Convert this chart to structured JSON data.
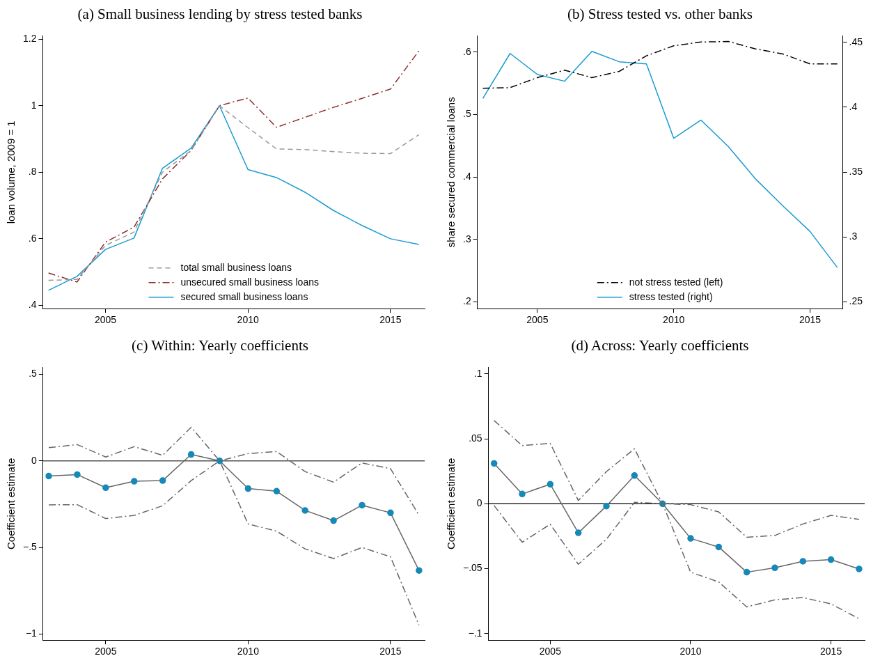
{
  "chart_data": [
    {
      "type": "line",
      "title": "(a) Small business lending by stress tested banks",
      "ylabel": "loan volume, 2009 = 1",
      "x": [
        2003,
        2004,
        2005,
        2006,
        2007,
        2008,
        2009,
        2010,
        2011,
        2012,
        2013,
        2014,
        2015,
        2016
      ],
      "xlim": [
        2002.8,
        2016.2
      ],
      "xticks": [
        2005,
        2010,
        2015
      ],
      "ylim": [
        0.39,
        1.21
      ],
      "yticks": [
        {
          "value": 0.4,
          "label": ".4"
        },
        {
          "value": 0.6,
          "label": ".6"
        },
        {
          "value": 0.8,
          "label": ".8"
        },
        1,
        1.2
      ],
      "grid": false,
      "legend": "bottom",
      "series": [
        {
          "name": "total small business loans",
          "color": "#999999",
          "line_style": "dashed",
          "values": [
            0.475,
            0.478,
            0.58,
            0.62,
            0.8,
            0.865,
            1.0,
            0.934,
            0.87,
            0.868,
            0.862,
            0.857,
            0.856,
            0.913
          ]
        },
        {
          "name": "unsecured small business loans",
          "color": "#8b2c2c",
          "line_style": "dashdot",
          "values": [
            0.497,
            0.47,
            0.59,
            0.635,
            0.78,
            0.865,
            1.0,
            1.023,
            0.935,
            0.965,
            0.995,
            1.022,
            1.05,
            1.165
          ]
        },
        {
          "name": "secured small business loans",
          "color": "#1a9bd0",
          "line_style": "solid",
          "values": [
            0.445,
            0.487,
            0.568,
            0.602,
            0.812,
            0.872,
            1.0,
            0.808,
            0.784,
            0.74,
            0.685,
            0.64,
            0.6,
            0.583
          ]
        }
      ]
    },
    {
      "type": "line",
      "title": "(b) Stress tested vs. other banks",
      "ylabel": "share secured commercial loans",
      "x": [
        2003,
        2004,
        2005,
        2006,
        2007,
        2008,
        2009,
        2010,
        2011,
        2012,
        2013,
        2014,
        2015,
        2016
      ],
      "xlim": [
        2002.8,
        2016.2
      ],
      "xticks": [
        2005,
        2010,
        2015
      ],
      "ylim": [
        0.189,
        0.626
      ],
      "yticks": [
        {
          "value": 0.2,
          "label": ".2"
        },
        {
          "value": 0.3,
          "label": ".3"
        },
        {
          "value": 0.4,
          "label": ".4"
        },
        {
          "value": 0.5,
          "label": ".5"
        },
        {
          "value": 0.6,
          "label": ".6"
        }
      ],
      "y2lim": [
        0.2447,
        0.455
      ],
      "y2ticks": [
        {
          "value": 0.25,
          "label": ".25"
        },
        {
          "value": 0.3,
          "label": ".3"
        },
        {
          "value": 0.35,
          "label": ".35"
        },
        {
          "value": 0.4,
          "label": ".4"
        },
        {
          "value": 0.45,
          "label": ".45"
        }
      ],
      "grid": false,
      "legend": "bottom",
      "series": [
        {
          "name": "not stress tested (left)",
          "color": "#000000",
          "line_style": "dashdot",
          "values": [
            0.542,
            0.543,
            0.559,
            0.571,
            0.559,
            0.569,
            0.594,
            0.61,
            0.616,
            0.617,
            0.605,
            0.597,
            0.581,
            0.581
          ]
        },
        {
          "name": "stress tested (right)",
          "color": "#1a9bd0",
          "line_style": "solid",
          "axis": "y2",
          "values": [
            0.4067,
            0.4414,
            0.4252,
            0.42,
            0.443,
            0.435,
            0.4333,
            0.376,
            0.39,
            0.3697,
            0.3447,
            0.324,
            0.3042,
            0.2764
          ]
        }
      ]
    },
    {
      "type": "line",
      "title": "(c) Within: Yearly coefficients",
      "ylabel": "Coefficient estimate",
      "x": [
        2003,
        2004,
        2005,
        2006,
        2007,
        2008,
        2009,
        2010,
        2011,
        2012,
        2013,
        2014,
        2015,
        2016
      ],
      "xlim": [
        2002.8,
        2016.2
      ],
      "xticks": [
        2005,
        2010,
        2015
      ],
      "ylim": [
        -1.035,
        0.54
      ],
      "yticks": [
        {
          "value": -1,
          "label": "−1"
        },
        {
          "value": -0.5,
          "label": "−.5"
        },
        0,
        {
          "value": 0.5,
          "label": ".5"
        }
      ],
      "grid": false,
      "ref_lines": [
        {
          "axis": "y",
          "value": 0,
          "color": "#555555"
        }
      ],
      "series": [
        {
          "color": "#666666",
          "line_style": "dashdot",
          "values": [
            0.076,
            0.094,
            0.022,
            0.082,
            0.032,
            0.194,
            0,
            0.042,
            0.054,
            -0.062,
            -0.123,
            -0.012,
            -0.045,
            -0.313
          ]
        },
        {
          "color": "#666666",
          "line_style": "dashdot",
          "values": [
            -0.254,
            -0.253,
            -0.333,
            -0.315,
            -0.259,
            -0.114,
            0,
            -0.364,
            -0.406,
            -0.508,
            -0.564,
            -0.5,
            -0.554,
            -0.948
          ]
        },
        {
          "color": "#666666",
          "line_style": "solid",
          "marker": "circle",
          "colors": [
            "#1589b8",
            "#1589b8",
            "#1589b8",
            "#1589b8",
            "#1589b8",
            "#1589b8",
            "#1589b8",
            "#1589b8",
            "#1589b8",
            "#1589b8",
            "#1589b8",
            "#1589b8",
            "#1589b8",
            "#1589b8"
          ],
          "values": [
            -0.088,
            -0.079,
            -0.155,
            -0.118,
            -0.114,
            0.037,
            0,
            -0.16,
            -0.175,
            -0.286,
            -0.345,
            -0.256,
            -0.3,
            -0.633
          ]
        }
      ]
    },
    {
      "type": "line",
      "title": "(d) Across: Yearly coefficients",
      "ylabel": "Coefficient estimate",
      "x": [
        2003,
        2004,
        2005,
        2006,
        2007,
        2008,
        2009,
        2010,
        2011,
        2012,
        2013,
        2014,
        2015,
        2016
      ],
      "xlim": [
        2002.8,
        2016.2
      ],
      "xticks": [
        2005,
        2010,
        2015
      ],
      "ylim": [
        -0.105,
        0.105
      ],
      "yticks": [
        {
          "value": -0.1,
          "label": "−.1"
        },
        {
          "value": -0.05,
          "label": "−.05"
        },
        0,
        {
          "value": 0.05,
          "label": ".05"
        },
        {
          "value": 0.1,
          "label": ".1"
        }
      ],
      "grid": false,
      "ref_lines": [
        {
          "axis": "y",
          "value": 0,
          "color": "#000000"
        }
      ],
      "series": [
        {
          "color": "#666666",
          "line_style": "dashdot",
          "values": [
            0.064,
            0.0448,
            0.0464,
            0.0025,
            0.0247,
            0.0423,
            0,
            -0.0007,
            -0.0063,
            -0.0258,
            -0.0244,
            -0.0156,
            -0.009,
            -0.012
          ]
        },
        {
          "color": "#666666",
          "line_style": "dashdot",
          "values": [
            -0.0014,
            -0.0296,
            -0.0158,
            -0.0466,
            -0.0274,
            0.0011,
            0,
            -0.0527,
            -0.0602,
            -0.0794,
            -0.074,
            -0.0722,
            -0.0771,
            -0.0885
          ]
        },
        {
          "color": "#666666",
          "line_style": "solid",
          "marker": "circle",
          "colors": [
            "#1589b8",
            "#1589b8",
            "#1589b8",
            "#1589b8",
            "#1589b8",
            "#1589b8",
            "#1589b8",
            "#1589b8",
            "#1589b8",
            "#1589b8",
            "#1589b8",
            "#1589b8",
            "#1589b8",
            "#1589b8"
          ],
          "values": [
            0.031,
            0.0075,
            0.015,
            -0.0224,
            -0.0018,
            0.0217,
            0,
            -0.0267,
            -0.0333,
            -0.0527,
            -0.0493,
            -0.0443,
            -0.043,
            -0.0502
          ]
        }
      ]
    }
  ]
}
